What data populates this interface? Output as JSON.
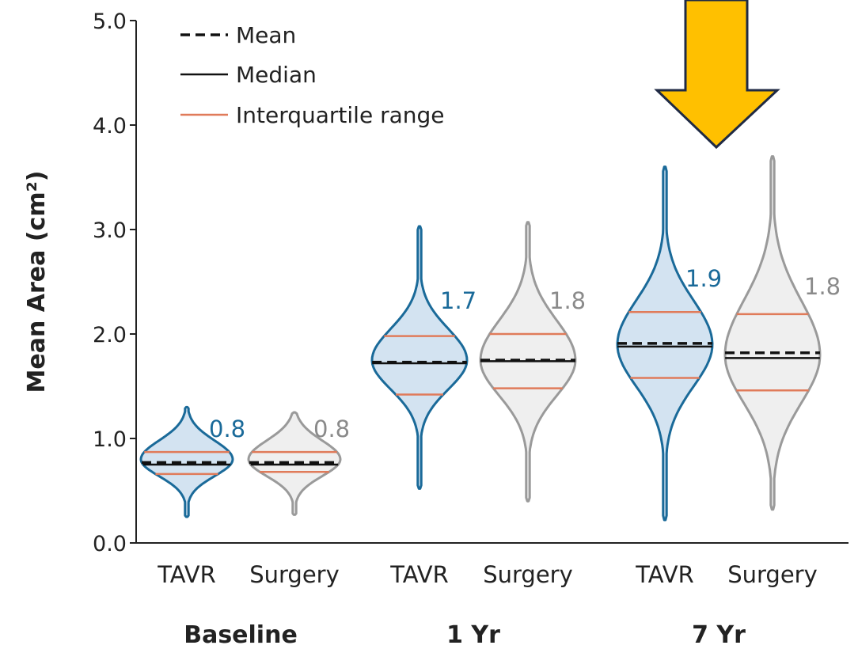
{
  "chart_data": {
    "type": "violin",
    "ylabel": "Mean Area (cm²)",
    "ylim": [
      0,
      5.0
    ],
    "yticks": [
      "0.0",
      "1.0",
      "2.0",
      "3.0",
      "4.0",
      "5.0"
    ],
    "legend": {
      "placement": "top-left",
      "entries": [
        {
          "label": "Mean",
          "style": "dashed",
          "color": "#111111"
        },
        {
          "label": "Median",
          "style": "solid",
          "color": "#111111"
        },
        {
          "label": "Interquartile range",
          "style": "solid",
          "color": "#e07b5a"
        }
      ]
    },
    "groups": [
      {
        "label": "Baseline",
        "violins": [
          {
            "category": "TAVR",
            "series": "TAVR",
            "value_label": "0.8",
            "mean": 0.77,
            "median": 0.75,
            "q1": 0.66,
            "q3": 0.87,
            "min": 0.25,
            "max": 1.3,
            "widest_at": 0.8,
            "half_width": 1.0
          },
          {
            "category": "Surgery",
            "series": "Surgery",
            "value_label": "0.8",
            "mean": 0.77,
            "median": 0.75,
            "q1": 0.68,
            "q3": 0.87,
            "min": 0.27,
            "max": 1.25,
            "widest_at": 0.8,
            "half_width": 1.0
          }
        ]
      },
      {
        "label": "1 Yr",
        "violins": [
          {
            "category": "TAVR",
            "series": "TAVR",
            "value_label": "1.7",
            "mean": 1.73,
            "median": 1.72,
            "q1": 1.42,
            "q3": 1.98,
            "min": 0.52,
            "max": 3.03,
            "widest_at": 1.75,
            "half_width": 1.0
          },
          {
            "category": "Surgery",
            "series": "Surgery",
            "value_label": "1.8",
            "mean": 1.75,
            "median": 1.74,
            "q1": 1.48,
            "q3": 2.0,
            "min": 0.4,
            "max": 3.07,
            "widest_at": 1.75,
            "half_width": 1.0
          }
        ]
      },
      {
        "label": "7 Yr",
        "violins": [
          {
            "category": "TAVR",
            "series": "TAVR",
            "value_label": "1.9",
            "mean": 1.91,
            "median": 1.88,
            "q1": 1.58,
            "q3": 2.21,
            "min": 0.22,
            "max": 3.6,
            "widest_at": 1.9,
            "half_width": 1.0
          },
          {
            "category": "Surgery",
            "series": "Surgery",
            "value_label": "1.8",
            "mean": 1.82,
            "median": 1.77,
            "q1": 1.46,
            "q3": 2.19,
            "min": 0.32,
            "max": 3.7,
            "widest_at": 1.8,
            "half_width": 1.0
          }
        ]
      }
    ],
    "series_styles": {
      "TAVR": {
        "fill": "#d3e3f1",
        "stroke": "#1a6a99",
        "label_color": "#1a6a99"
      },
      "Surgery": {
        "fill": "#efefef",
        "stroke": "#9a9a9a",
        "label_color": "#8a8a8a"
      }
    },
    "annotation": {
      "type": "down-arrow",
      "fill": "#ffc000",
      "stroke": "#1f2a44",
      "points_to": "7 Yr"
    }
  }
}
